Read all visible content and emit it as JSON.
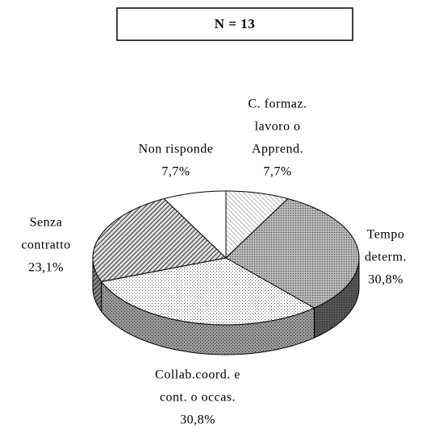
{
  "chart_data": {
    "type": "pie",
    "title": "N = 13",
    "categories": [
      [
        "C. formaz.",
        "lavoro o",
        "Apprend."
      ],
      [
        "Tempo",
        "determ."
      ],
      [
        "Collab.coord. e",
        "cont. o occas."
      ],
      [
        "Senza",
        "contratto"
      ],
      [
        "Non risponde"
      ]
    ],
    "values": [
      7.7,
      30.8,
      30.8,
      23.1,
      7.7
    ],
    "value_labels": [
      "7,7%",
      "30,8%",
      "30,8%",
      "23,1%",
      "7,7%"
    ],
    "three_d": true
  }
}
